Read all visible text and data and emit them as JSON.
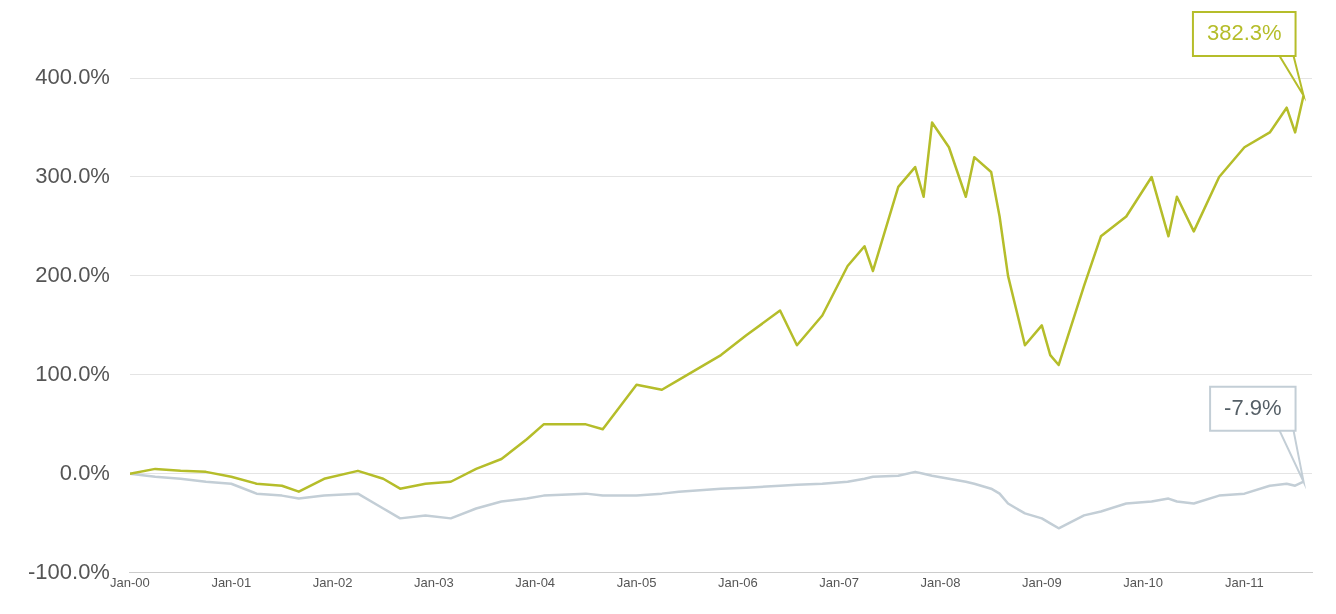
{
  "chart_data": {
    "type": "line",
    "x": [
      "2000-01",
      "2000-04",
      "2000-07",
      "2000-10",
      "2001-01",
      "2001-04",
      "2001-07",
      "2001-09",
      "2001-12",
      "2002-04",
      "2002-07",
      "2002-09",
      "2002-12",
      "2003-03",
      "2003-06",
      "2003-09",
      "2003-12",
      "2004-02",
      "2004-07",
      "2004-09",
      "2005-01",
      "2005-04",
      "2005-06",
      "2005-11",
      "2006-02",
      "2006-06",
      "2006-08",
      "2006-11",
      "2007-02",
      "2007-04",
      "2007-05",
      "2007-08",
      "2007-10",
      "2007-11",
      "2007-12",
      "2008-02",
      "2008-04",
      "2008-05",
      "2008-07",
      "2008-08",
      "2008-09",
      "2008-11",
      "2009-01",
      "2009-02",
      "2009-03",
      "2009-06",
      "2009-08",
      "2009-11",
      "2010-02",
      "2010-04",
      "2010-05",
      "2010-07",
      "2010-10",
      "2011-01",
      "2011-04",
      "2011-06",
      "2011-07",
      "2011-08"
    ],
    "series": [
      {
        "color": "#b5bd2a",
        "values": [
          0,
          5,
          3,
          2,
          -3,
          -10,
          -12,
          -18,
          -5,
          3,
          -5,
          -15,
          -10,
          -8,
          5,
          15,
          35,
          50,
          50,
          45,
          90,
          85,
          95,
          120,
          140,
          165,
          130,
          160,
          210,
          230,
          205,
          290,
          310,
          280,
          355,
          330,
          280,
          320,
          305,
          260,
          200,
          130,
          150,
          120,
          110,
          190,
          240,
          260,
          300,
          240,
          280,
          245,
          300,
          330,
          345,
          370,
          345,
          382.3
        ]
      },
      {
        "color": "#c3ced6",
        "values": [
          0,
          -3,
          -5,
          -8,
          -10,
          -20,
          -22,
          -25,
          -22,
          -20,
          -35,
          -45,
          -42,
          -45,
          -35,
          -28,
          -25,
          -22,
          -20,
          -22,
          -22,
          -20,
          -18,
          -15,
          -14,
          -12,
          -11,
          -10,
          -8,
          -5,
          -3,
          -2,
          2,
          0,
          -2,
          -5,
          -8,
          -10,
          -15,
          -20,
          -30,
          -40,
          -45,
          -50,
          -55,
          -42,
          -38,
          -30,
          -28,
          -25,
          -28,
          -30,
          -22,
          -20,
          -12,
          -10,
          -12,
          -7.9
        ]
      }
    ],
    "xlim": [
      "2000-01",
      "2011-09"
    ],
    "xticks": [
      {
        "value": "2000-01",
        "label": "Jan-00"
      },
      {
        "value": "2001-01",
        "label": "Jan-01"
      },
      {
        "value": "2002-01",
        "label": "Jan-02"
      },
      {
        "value": "2003-01",
        "label": "Jan-03"
      },
      {
        "value": "2004-01",
        "label": "Jan-04"
      },
      {
        "value": "2005-01",
        "label": "Jan-05"
      },
      {
        "value": "2006-01",
        "label": "Jan-06"
      },
      {
        "value": "2007-01",
        "label": "Jan-07"
      },
      {
        "value": "2008-01",
        "label": "Jan-08"
      },
      {
        "value": "2009-01",
        "label": "Jan-09"
      },
      {
        "value": "2010-01",
        "label": "Jan-10"
      },
      {
        "value": "2011-01",
        "label": "Jan-11"
      }
    ],
    "ylim": [
      -100,
      400
    ],
    "yticks": [
      {
        "value": -100,
        "label": "-100.0%"
      },
      {
        "value": 0,
        "label": "0.0%"
      },
      {
        "value": 100,
        "label": "100.0%"
      },
      {
        "value": 200,
        "label": "200.0%"
      },
      {
        "value": 300,
        "label": "300.0%"
      },
      {
        "value": 400,
        "label": "400.0%"
      }
    ],
    "annotations": [
      {
        "text": "382.3%",
        "x": "2011-08",
        "y": 382.3
      },
      {
        "text": "-7.9%",
        "x": "2011-08",
        "y": -7.9
      }
    ],
    "grid": "y",
    "legend": false,
    "marker": "none",
    "line_style": "solid"
  }
}
